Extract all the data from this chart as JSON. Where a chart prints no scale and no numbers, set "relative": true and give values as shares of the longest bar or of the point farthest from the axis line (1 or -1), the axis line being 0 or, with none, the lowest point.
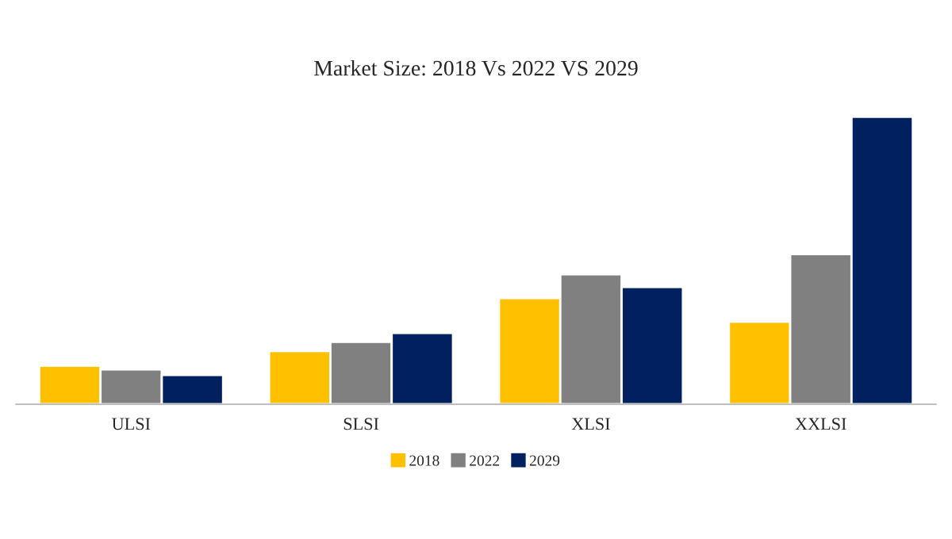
{
  "chart_data": {
    "type": "bar",
    "title": "Market Size: 2018 Vs 2022 VS 2029",
    "relative": true,
    "categories": [
      "ULSI",
      "SLSI",
      "XLSI",
      "XXLSI"
    ],
    "series": [
      {
        "name": "2018",
        "color": "#ffc000",
        "values": [
          0.134,
          0.185,
          0.369,
          0.287
        ]
      },
      {
        "name": "2022",
        "color": "#808080",
        "values": [
          0.121,
          0.217,
          0.452,
          0.522
        ]
      },
      {
        "name": "2029",
        "color": "#002060",
        "values": [
          0.102,
          0.248,
          0.408,
          1.0
        ]
      }
    ],
    "grid": false,
    "legend": "bottom"
  }
}
